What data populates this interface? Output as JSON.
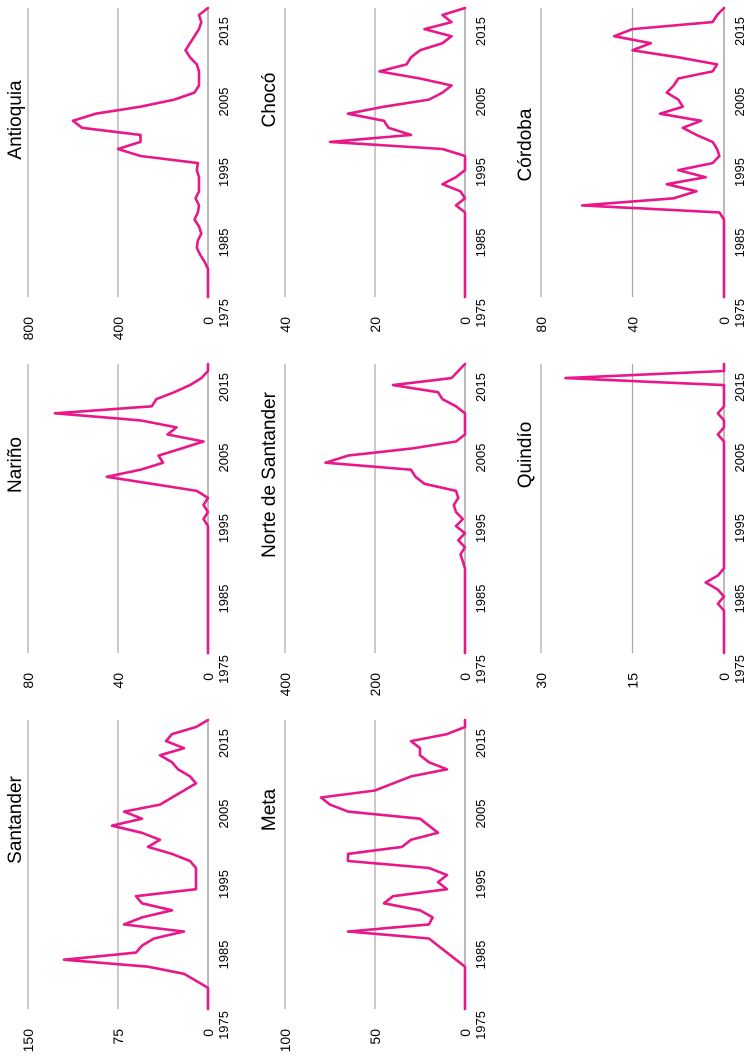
{
  "accent_color": "#e8178a",
  "chart_data": [
    {
      "type": "line",
      "title": "Antioquia",
      "x": [
        1975,
        1976,
        1977,
        1978,
        1979,
        1980,
        1981,
        1982,
        1983,
        1984,
        1985,
        1986,
        1987,
        1988,
        1989,
        1990,
        1991,
        1992,
        1993,
        1994,
        1995,
        1996,
        1997,
        1998,
        1999,
        2000,
        2001,
        2002,
        2003,
        2004,
        2005,
        2006,
        2007,
        2008,
        2009,
        2010,
        2011,
        2012,
        2013,
        2014,
        2015,
        2016
      ],
      "values": [
        0,
        0,
        0,
        0,
        0,
        15,
        35,
        50,
        45,
        30,
        40,
        60,
        45,
        40,
        55,
        40,
        40,
        40,
        50,
        45,
        300,
        400,
        300,
        300,
        560,
        600,
        500,
        300,
        150,
        60,
        40,
        40,
        40,
        50,
        80,
        100,
        80,
        60,
        40,
        30,
        40,
        0
      ],
      "yticks": [
        0,
        400,
        800
      ],
      "ylim": [
        0,
        800
      ],
      "xticks": [
        1975,
        1985,
        1995,
        2005,
        2015
      ]
    },
    {
      "type": "line",
      "title": "Chocó",
      "x": [
        1975,
        1976,
        1977,
        1978,
        1979,
        1980,
        1981,
        1982,
        1983,
        1984,
        1985,
        1986,
        1987,
        1988,
        1989,
        1990,
        1991,
        1992,
        1993,
        1994,
        1995,
        1996,
        1997,
        1998,
        1999,
        2000,
        2001,
        2002,
        2003,
        2004,
        2005,
        2006,
        2007,
        2008,
        2009,
        2010,
        2011,
        2012,
        2013,
        2014,
        2015,
        2016
      ],
      "values": [
        0,
        0,
        0,
        0,
        0,
        0,
        0,
        0,
        0,
        0,
        0,
        0,
        0,
        2,
        0,
        1,
        5,
        2,
        0,
        0,
        0,
        5,
        30,
        12,
        17,
        18,
        26,
        18,
        8,
        5,
        3,
        10,
        19,
        13,
        12,
        10,
        5,
        3,
        9,
        3,
        5,
        0
      ],
      "yticks": [
        0,
        20,
        40
      ],
      "ylim": [
        0,
        40
      ],
      "xticks": [
        1975,
        1985,
        1995,
        2005,
        2015
      ]
    },
    {
      "type": "line",
      "title": "Córdoba",
      "x": [
        1975,
        1976,
        1977,
        1978,
        1979,
        1980,
        1981,
        1982,
        1983,
        1984,
        1985,
        1986,
        1987,
        1988,
        1989,
        1990,
        1991,
        1992,
        1993,
        1994,
        1995,
        1996,
        1997,
        1998,
        1999,
        2000,
        2001,
        2002,
        2003,
        2004,
        2005,
        2006,
        2007,
        2008,
        2009,
        2010,
        2011,
        2012,
        2013,
        2014,
        2015,
        2016
      ],
      "values": [
        0,
        0,
        0,
        0,
        0,
        0,
        0,
        0,
        0,
        0,
        0,
        0,
        2,
        62,
        22,
        12,
        25,
        8,
        20,
        5,
        2,
        3,
        5,
        12,
        18,
        10,
        28,
        18,
        20,
        25,
        22,
        20,
        5,
        3,
        20,
        40,
        32,
        48,
        40,
        5,
        3,
        0
      ],
      "yticks": [
        0,
        40,
        80
      ],
      "ylim": [
        0,
        80
      ],
      "xticks": [
        1975,
        1985,
        1995,
        2005,
        2015
      ]
    },
    {
      "type": "line",
      "title": "Nariño",
      "x": [
        1975,
        1976,
        1977,
        1978,
        1979,
        1980,
        1981,
        1982,
        1983,
        1984,
        1985,
        1986,
        1987,
        1988,
        1989,
        1990,
        1991,
        1992,
        1993,
        1994,
        1995,
        1996,
        1997,
        1998,
        1999,
        2000,
        2001,
        2002,
        2003,
        2004,
        2005,
        2006,
        2007,
        2008,
        2009,
        2010,
        2011,
        2012,
        2013,
        2014,
        2015,
        2016
      ],
      "values": [
        0,
        0,
        0,
        0,
        0,
        0,
        0,
        0,
        0,
        0,
        0,
        0,
        0,
        0,
        0,
        0,
        0,
        0,
        0,
        2,
        0,
        2,
        0,
        5,
        25,
        45,
        30,
        20,
        22,
        12,
        2,
        18,
        14,
        30,
        68,
        25,
        23,
        15,
        8,
        3,
        0,
        0
      ],
      "yticks": [
        0,
        40,
        80
      ],
      "ylim": [
        0,
        80
      ],
      "xticks": [
        1975,
        1985,
        1995,
        2005,
        2015
      ]
    },
    {
      "type": "line",
      "title": "Norte de Santander",
      "x": [
        1975,
        1976,
        1977,
        1978,
        1979,
        1980,
        1981,
        1982,
        1983,
        1984,
        1985,
        1986,
        1987,
        1988,
        1989,
        1990,
        1991,
        1992,
        1993,
        1994,
        1995,
        1996,
        1997,
        1998,
        1999,
        2000,
        2001,
        2002,
        2003,
        2004,
        2005,
        2006,
        2007,
        2008,
        2009,
        2010,
        2011,
        2012,
        2013,
        2014,
        2015,
        2016
      ],
      "values": [
        0,
        0,
        0,
        0,
        0,
        0,
        0,
        0,
        0,
        0,
        0,
        0,
        0,
        5,
        10,
        0,
        15,
        0,
        20,
        5,
        20,
        25,
        15,
        20,
        90,
        110,
        120,
        310,
        260,
        120,
        20,
        0,
        0,
        0,
        0,
        20,
        50,
        60,
        160,
        30,
        15,
        0
      ],
      "yticks": [
        0,
        200,
        400
      ],
      "ylim": [
        0,
        400
      ],
      "xticks": [
        1975,
        1985,
        1995,
        2005,
        2015
      ]
    },
    {
      "type": "line",
      "title": "Quindío",
      "x": [
        1975,
        1976,
        1977,
        1978,
        1979,
        1980,
        1981,
        1982,
        1983,
        1984,
        1985,
        1986,
        1987,
        1988,
        1989,
        1990,
        1991,
        1992,
        1993,
        1994,
        1995,
        1996,
        1997,
        1998,
        1999,
        2000,
        2001,
        2002,
        2003,
        2004,
        2005,
        2006,
        2007,
        2008,
        2009,
        2010,
        2011,
        2012,
        2013,
        2014,
        2015,
        2016
      ],
      "values": [
        0,
        0,
        0,
        0,
        0,
        0,
        0,
        1,
        0,
        1,
        3,
        1,
        0,
        0,
        0,
        0,
        0,
        0,
        0,
        0,
        0,
        0,
        0,
        0,
        0,
        0,
        0,
        0,
        0,
        0,
        0,
        1,
        0,
        0,
        1,
        0,
        0,
        0,
        0,
        26,
        0,
        0
      ],
      "yticks": [
        0,
        15,
        30
      ],
      "ylim": [
        0,
        30
      ],
      "xticks": [
        1975,
        1985,
        1995,
        2005,
        2015
      ]
    },
    {
      "type": "line",
      "title": "Santander",
      "x": [
        1975,
        1976,
        1977,
        1978,
        1979,
        1980,
        1981,
        1982,
        1983,
        1984,
        1985,
        1986,
        1987,
        1988,
        1989,
        1990,
        1991,
        1992,
        1993,
        1994,
        1995,
        1996,
        1997,
        1998,
        1999,
        2000,
        2001,
        2002,
        2003,
        2004,
        2005,
        2006,
        2007,
        2008,
        2009,
        2010,
        2011,
        2012,
        2013,
        2014,
        2015,
        2016
      ],
      "values": [
        0,
        0,
        0,
        0,
        10,
        20,
        50,
        120,
        60,
        55,
        45,
        20,
        70,
        55,
        30,
        55,
        60,
        10,
        10,
        10,
        10,
        15,
        30,
        50,
        40,
        55,
        80,
        55,
        70,
        40,
        30,
        20,
        10,
        15,
        25,
        30,
        40,
        20,
        35,
        30,
        10,
        0
      ],
      "yticks": [
        0,
        75,
        150
      ],
      "ylim": [
        0,
        150
      ],
      "xticks": [
        1975,
        1985,
        1995,
        2005,
        2015
      ]
    },
    {
      "type": "line",
      "title": "Meta",
      "x": [
        1975,
        1976,
        1977,
        1978,
        1979,
        1980,
        1981,
        1982,
        1983,
        1984,
        1985,
        1986,
        1987,
        1988,
        1989,
        1990,
        1991,
        1992,
        1993,
        1994,
        1995,
        1996,
        1997,
        1998,
        1999,
        2000,
        2001,
        2002,
        2003,
        2004,
        2005,
        2006,
        2007,
        2008,
        2009,
        2010,
        2011,
        2012,
        2013,
        2014,
        2015,
        2016
      ],
      "values": [
        0,
        0,
        0,
        0,
        0,
        0,
        0,
        5,
        10,
        15,
        20,
        65,
        20,
        18,
        25,
        45,
        40,
        10,
        15,
        10,
        20,
        65,
        65,
        35,
        30,
        15,
        20,
        25,
        65,
        75,
        80,
        50,
        40,
        30,
        10,
        20,
        25,
        25,
        30,
        10,
        0,
        0
      ],
      "yticks": [
        0,
        50,
        100
      ],
      "ylim": [
        0,
        100
      ],
      "xticks": [
        1975,
        1985,
        1995,
        2005,
        2015
      ]
    }
  ]
}
